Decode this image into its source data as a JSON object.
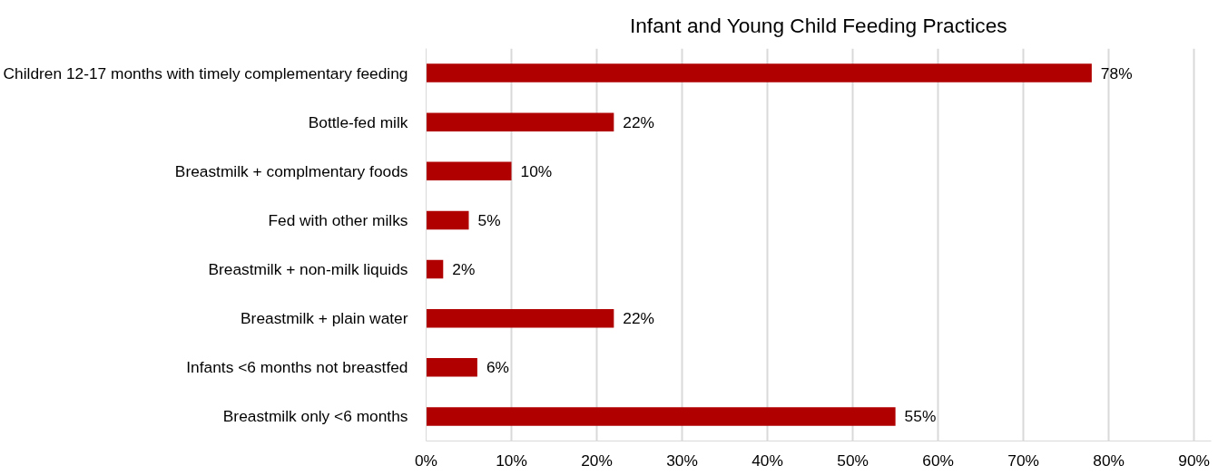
{
  "chart_data": {
    "type": "bar",
    "orientation": "horizontal",
    "title": "Infant and Young Child Feeding Practices",
    "categories": [
      "Children 12-17 months with timely complementary feeding",
      "Bottle-fed milk",
      "Breastmilk + complmentary foods",
      "Fed with other milks",
      "Breastmilk + non-milk liquids",
      "Breastmilk + plain water",
      "Infants <6 months not breastfed",
      "Breastmilk only <6 months"
    ],
    "values": [
      78,
      22,
      10,
      5,
      2,
      22,
      6,
      55
    ],
    "value_labels": [
      "78%",
      "22%",
      "10%",
      "5%",
      "2%",
      "22%",
      "6%",
      "55%"
    ],
    "color": "#b00000",
    "xlim": [
      0,
      92
    ],
    "xticks": [
      {
        "value": 0,
        "label": "0%"
      },
      {
        "value": 10,
        "label": "10%"
      },
      {
        "value": 20,
        "label": "20%"
      },
      {
        "value": 30,
        "label": "30%"
      },
      {
        "value": 40,
        "label": "40%"
      },
      {
        "value": 50,
        "label": "50%"
      },
      {
        "value": 60,
        "label": "60%"
      },
      {
        "value": 70,
        "label": "70%"
      },
      {
        "value": 80,
        "label": "80%"
      },
      {
        "value": 90,
        "label": "90%"
      }
    ],
    "grid": "x"
  }
}
